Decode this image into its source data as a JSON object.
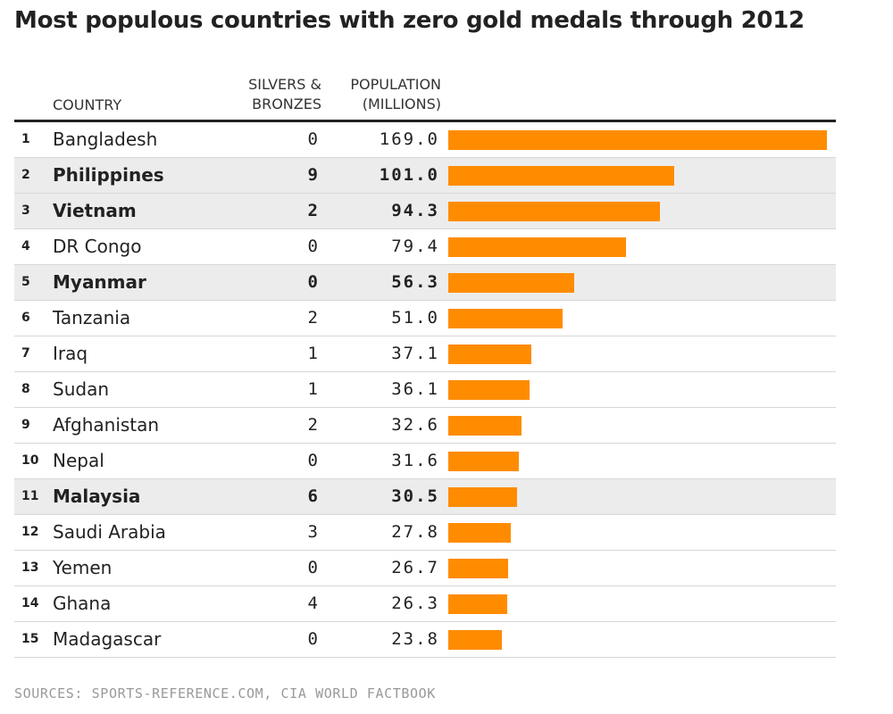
{
  "chart_data": {
    "type": "table",
    "title": "Most populous countries with zero gold medals through 2012",
    "columns": {
      "country": "COUNTRY",
      "medals_line1": "SILVERS &",
      "medals_line2": "BRONZES",
      "pop_line1": "POPULATION",
      "pop_line2": "(MILLIONS)"
    },
    "bar_max": 169.0,
    "bar_color": "#ff8c00",
    "highlight_color": "#ececec",
    "rows": [
      {
        "rank": "1",
        "country": "Bangladesh",
        "medals": "0",
        "population": "169.0",
        "value": 169.0,
        "highlight": false
      },
      {
        "rank": "2",
        "country": "Philippines",
        "medals": "9",
        "population": "101.0",
        "value": 101.0,
        "highlight": true
      },
      {
        "rank": "3",
        "country": "Vietnam",
        "medals": "2",
        "population": "94.3",
        "value": 94.3,
        "highlight": true
      },
      {
        "rank": "4",
        "country": "DR Congo",
        "medals": "0",
        "population": "79.4",
        "value": 79.4,
        "highlight": false
      },
      {
        "rank": "5",
        "country": "Myanmar",
        "medals": "0",
        "population": "56.3",
        "value": 56.3,
        "highlight": true
      },
      {
        "rank": "6",
        "country": "Tanzania",
        "medals": "2",
        "population": "51.0",
        "value": 51.0,
        "highlight": false
      },
      {
        "rank": "7",
        "country": "Iraq",
        "medals": "1",
        "population": "37.1",
        "value": 37.1,
        "highlight": false
      },
      {
        "rank": "8",
        "country": "Sudan",
        "medals": "1",
        "population": "36.1",
        "value": 36.1,
        "highlight": false
      },
      {
        "rank": "9",
        "country": "Afghanistan",
        "medals": "2",
        "population": "32.6",
        "value": 32.6,
        "highlight": false
      },
      {
        "rank": "10",
        "country": "Nepal",
        "medals": "0",
        "population": "31.6",
        "value": 31.6,
        "highlight": false
      },
      {
        "rank": "11",
        "country": "Malaysia",
        "medals": "6",
        "population": "30.5",
        "value": 30.5,
        "highlight": true
      },
      {
        "rank": "12",
        "country": "Saudi Arabia",
        "medals": "3",
        "population": "27.8",
        "value": 27.8,
        "highlight": false
      },
      {
        "rank": "13",
        "country": "Yemen",
        "medals": "0",
        "population": "26.7",
        "value": 26.7,
        "highlight": false
      },
      {
        "rank": "14",
        "country": "Ghana",
        "medals": "4",
        "population": "26.3",
        "value": 26.3,
        "highlight": false
      },
      {
        "rank": "15",
        "country": "Madagascar",
        "medals": "0",
        "population": "23.8",
        "value": 23.8,
        "highlight": false
      }
    ],
    "source": "SOURCES: SPORTS-REFERENCE.COM, CIA WORLD FACTBOOK"
  }
}
